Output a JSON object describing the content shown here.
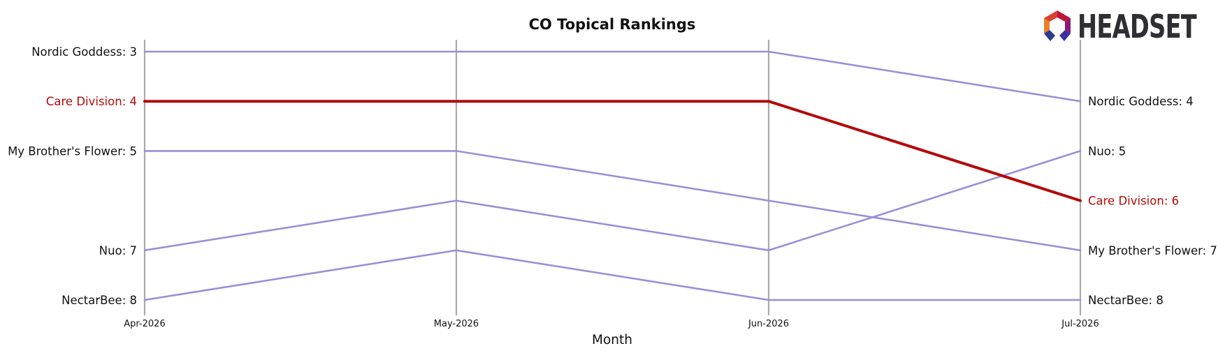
{
  "chart_data": {
    "type": "line",
    "title": "CO Topical Rankings",
    "xlabel": "Month",
    "categories": [
      "Apr-2026",
      "May-2026",
      "Jun-2026",
      "Jul-2026"
    ],
    "y_inverted": true,
    "ylim": [
      2.8,
      8.3
    ],
    "highlight_series": "Care Division",
    "highlight_color": "#b40a0a",
    "series_color": "#9b8fd6",
    "gridline_color": "#aaaaaa",
    "series": [
      {
        "name": "Nordic Goddess",
        "values": [
          3,
          3,
          3,
          4
        ],
        "start_label": "Nordic Goddess: 3",
        "end_label": "Nordic Goddess: 4"
      },
      {
        "name": "Care Division",
        "values": [
          4,
          4,
          4,
          6
        ],
        "start_label": "Care Division: 4",
        "end_label": "Care Division: 6"
      },
      {
        "name": "My Brother's Flower",
        "values": [
          5,
          5,
          6,
          7
        ],
        "start_label": "My Brother's Flower: 5",
        "end_label": "My Brother's Flower: 7"
      },
      {
        "name": "Nuo",
        "values": [
          7,
          6,
          7,
          5
        ],
        "start_label": "Nuo: 7",
        "end_label": "Nuo: 5"
      },
      {
        "name": "NectarBee",
        "values": [
          8,
          7,
          8,
          8
        ],
        "start_label": "NectarBee: 8",
        "end_label": "NectarBee: 8"
      }
    ]
  },
  "logo": {
    "text": "HEADSET",
    "icon": "headset-hexagon-logo-icon"
  }
}
